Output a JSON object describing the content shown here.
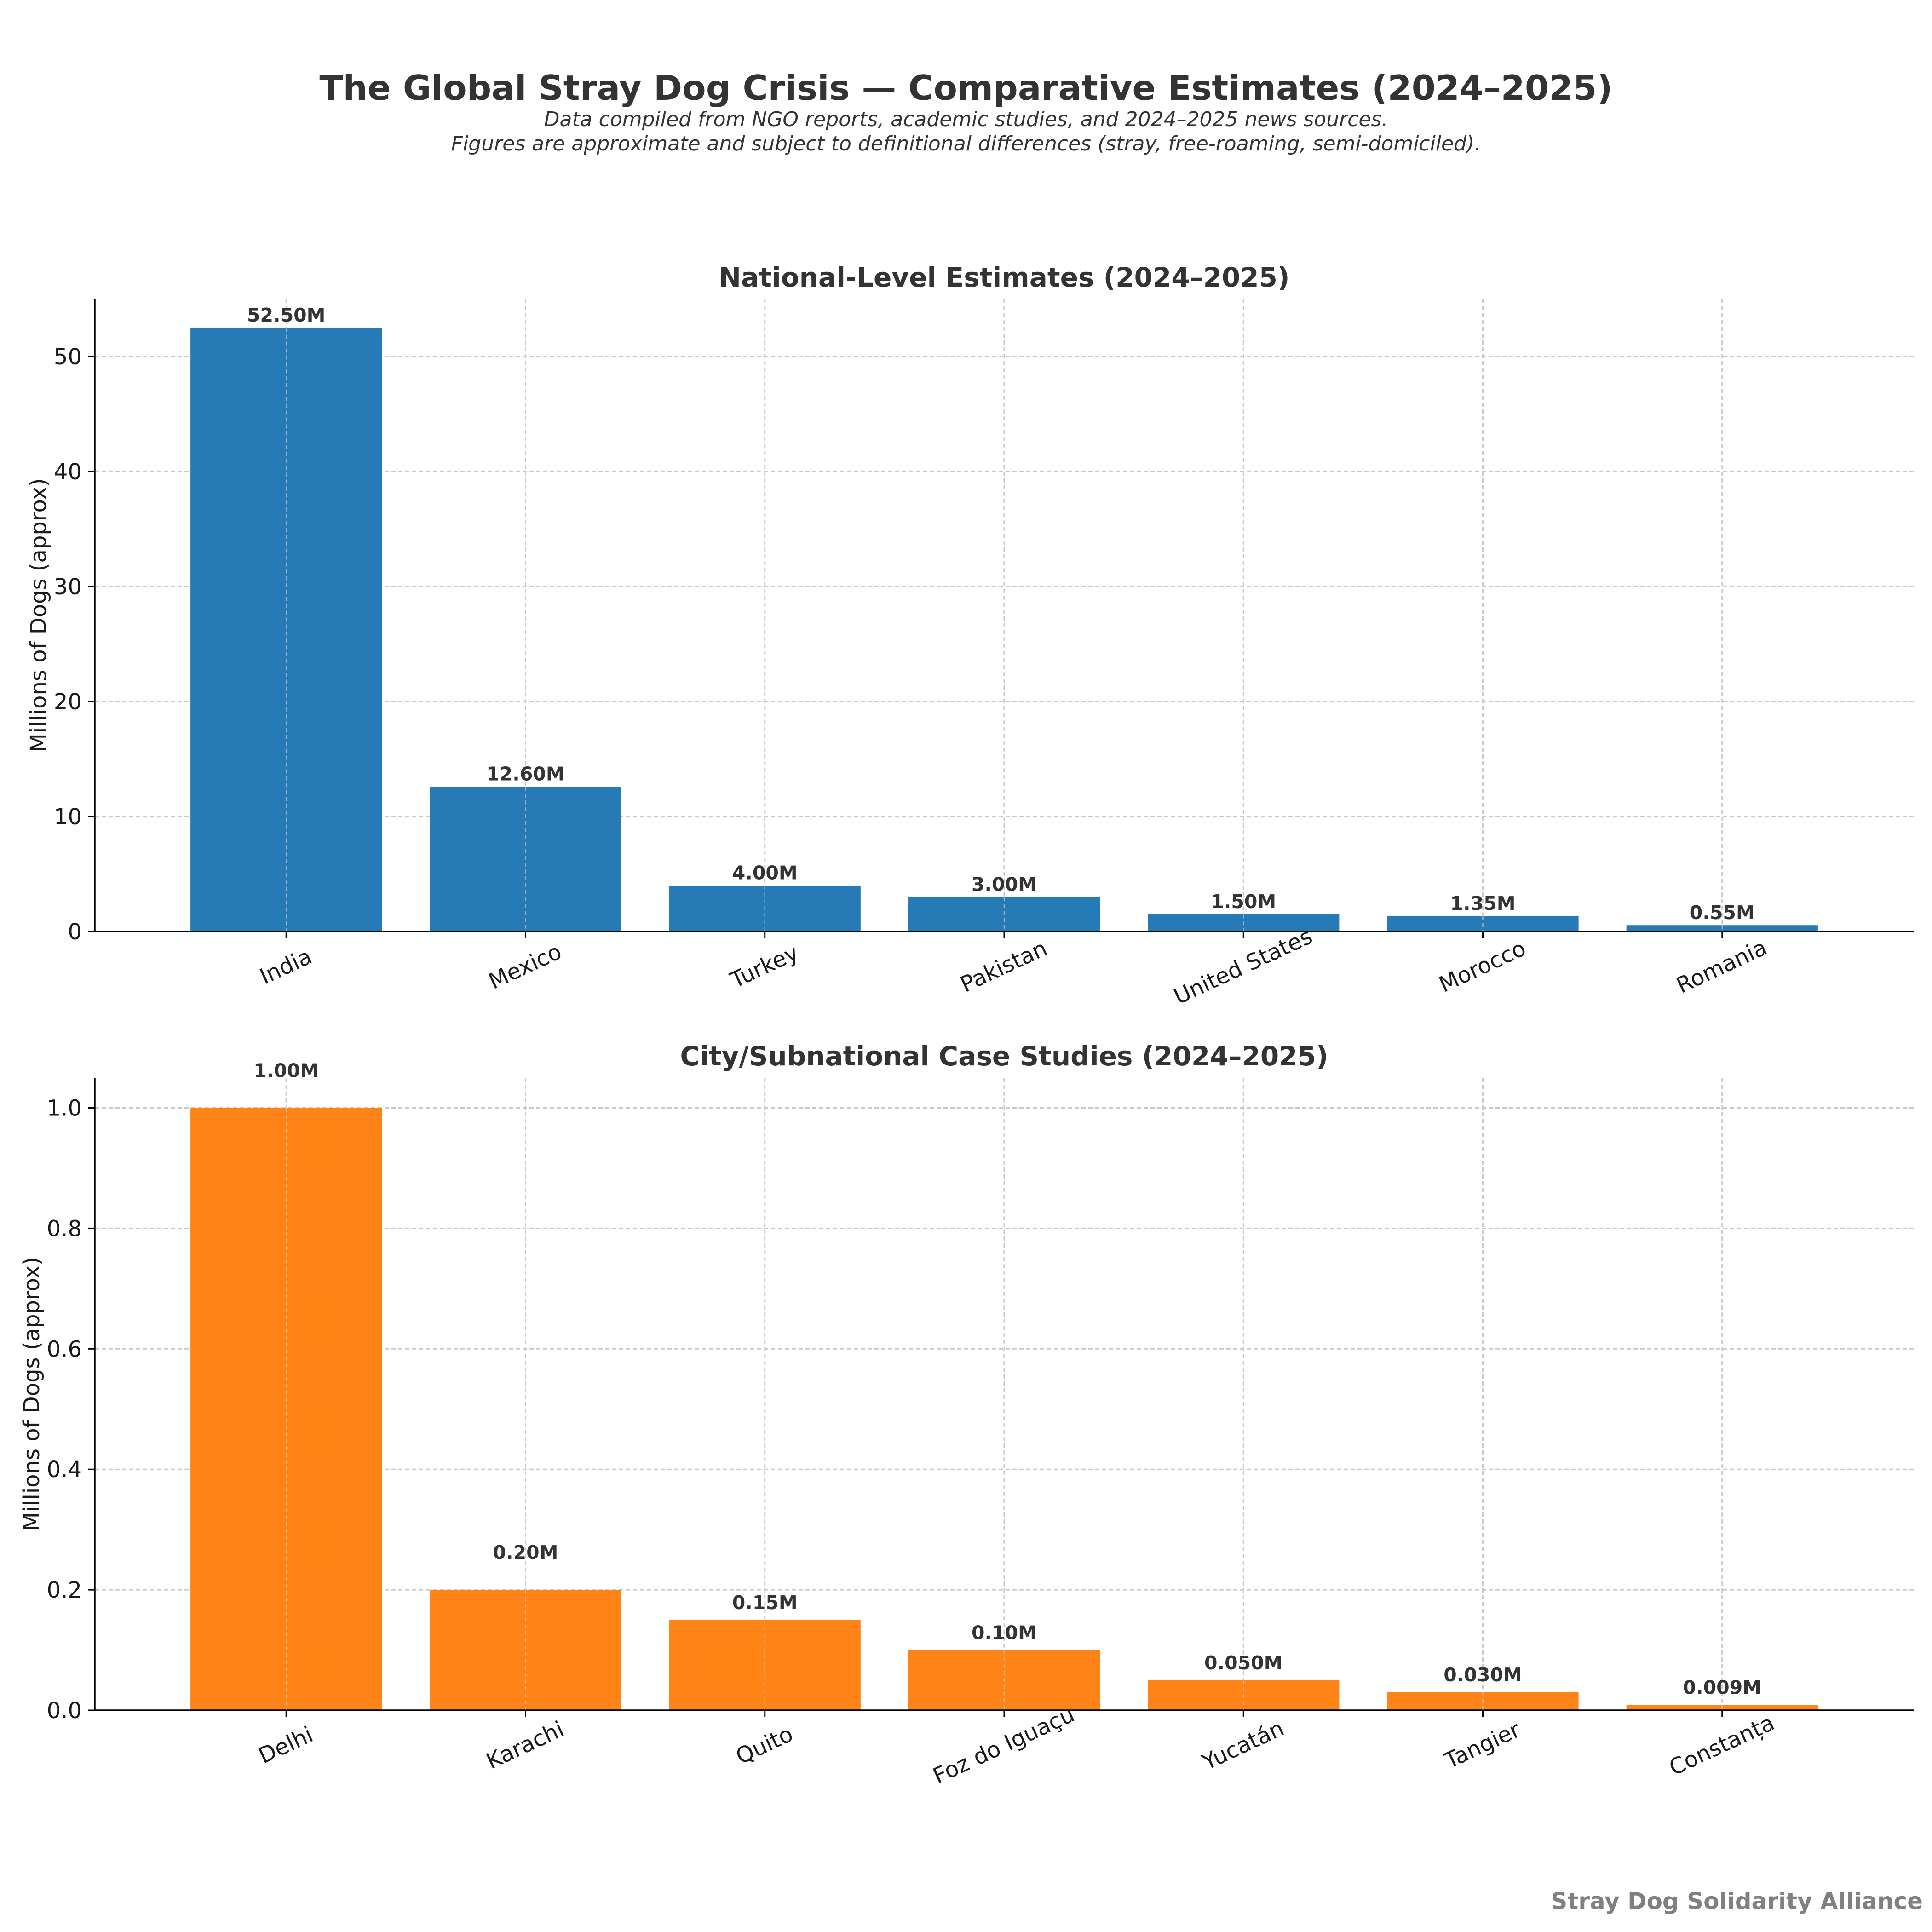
{
  "header": {
    "title": "The Global Stray Dog Crisis — Comparative Estimates (2024–2025)",
    "subtitle_line1": "Data compiled from NGO reports, academic studies, and 2024–2025 news sources.",
    "subtitle_line2": "Figures are approximate and subject to definitional differences (stray, free-roaming, semi-domiciled)."
  },
  "footer": {
    "credit": "Stray Dog Solidarity Alliance"
  },
  "chart_data": [
    {
      "type": "bar",
      "title": "National-Level Estimates (2024–2025)",
      "xlabel": "",
      "ylabel": "Millions of Dogs (approx)",
      "categories": [
        "India",
        "Mexico",
        "Turkey",
        "Pakistan",
        "United States",
        "Morocco",
        "Romania"
      ],
      "values": [
        52.5,
        12.6,
        4.0,
        3.0,
        1.5,
        1.35,
        0.55
      ],
      "data_labels": [
        "52.50M",
        "12.60M",
        "4.00M",
        "3.00M",
        "1.50M",
        "1.35M",
        "0.55M"
      ],
      "ylim": [
        0,
        55
      ],
      "yticks": [
        0,
        10,
        20,
        30,
        40,
        50
      ],
      "ytick_labels": [
        "0",
        "10",
        "20",
        "30",
        "40",
        "50"
      ],
      "grid": true,
      "color": "#1f77b4"
    },
    {
      "type": "bar",
      "title": "City/Subnational Case Studies (2024–2025)",
      "xlabel": "",
      "ylabel": "Millions of Dogs (approx)",
      "categories": [
        "Delhi",
        "Karachi",
        "Quito",
        "Foz do Iguaçu",
        "Yucatán",
        "Tangier",
        "Constanța"
      ],
      "values": [
        1.0,
        0.2,
        0.15,
        0.1,
        0.05,
        0.03,
        0.009
      ],
      "data_labels": [
        "1.00M",
        "0.20M",
        "0.15M",
        "0.10M",
        "0.050M",
        "0.030M",
        "0.009M"
      ],
      "label_offsets": [
        0.045,
        0.045,
        0.012,
        0.012,
        0.012,
        0.012,
        0.012
      ],
      "ylim": [
        0,
        1.05
      ],
      "yticks": [
        0,
        0.2,
        0.4,
        0.6,
        0.8,
        1.0
      ],
      "ytick_labels": [
        "0.0",
        "0.2",
        "0.4",
        "0.6",
        "0.8",
        "1.0"
      ],
      "grid": true,
      "color": "#ff7f0e"
    }
  ]
}
